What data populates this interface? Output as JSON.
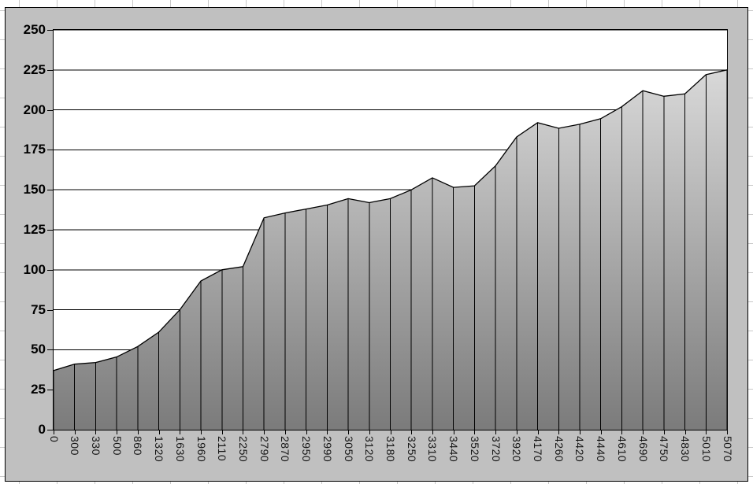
{
  "chart_data": {
    "type": "area",
    "title": "",
    "legend": "none",
    "gridlines": "horizontal",
    "drop_lines": true,
    "x_label_rotation_deg": 90,
    "categories": [
      "0",
      "300",
      "330",
      "500",
      "860",
      "1320",
      "1630",
      "1960",
      "2110",
      "2250",
      "2790",
      "2870",
      "2950",
      "2990",
      "3050",
      "3120",
      "3180",
      "3250",
      "3310",
      "3440",
      "3520",
      "3720",
      "3920",
      "4170",
      "4260",
      "4420",
      "4440",
      "4610",
      "4690",
      "4750",
      "4830",
      "5010",
      "5070"
    ],
    "values": [
      37,
      41,
      42,
      45.5,
      52,
      61,
      75,
      93,
      100,
      102,
      132.5,
      135.5,
      138,
      140.5,
      144.5,
      142,
      144.5,
      150,
      157.5,
      151.5,
      152.5,
      165,
      183,
      192,
      188.5,
      191,
      194.5,
      202,
      212,
      208.5,
      210,
      222,
      225
    ],
    "y_axis": {
      "min": 0,
      "max": 250,
      "step": 25,
      "tick_labels": [
        "0",
        "25",
        "50",
        "75",
        "100",
        "125",
        "150",
        "175",
        "200",
        "225",
        "250"
      ]
    },
    "colors": {
      "chart_background": "#c0c0c0",
      "plot_background": "#ffffff",
      "gridline": "#000000",
      "series_outline": "#000000",
      "drop_line": "#000000",
      "area_gradient_top": "#d9d9d9",
      "area_gradient_bottom": "#7b7b7b",
      "axis_text": "#000000",
      "worksheet_gridline": "#c9c9c9"
    }
  }
}
